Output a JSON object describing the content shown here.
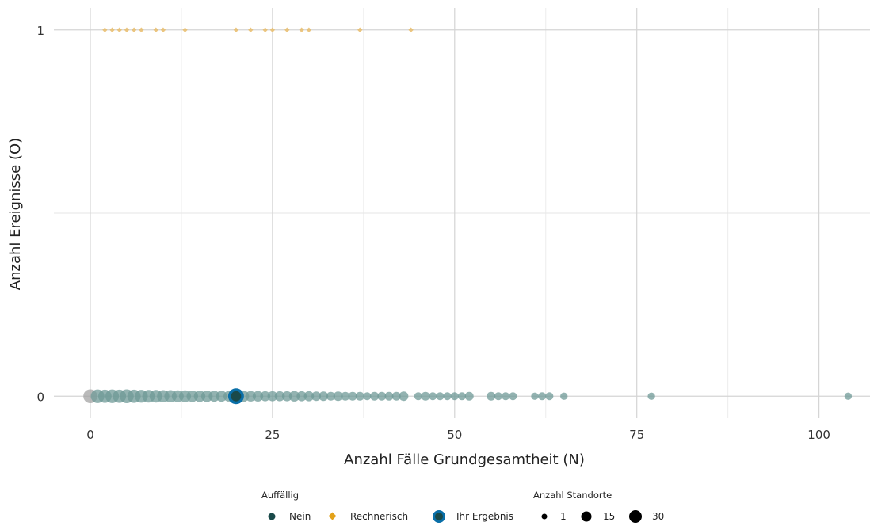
{
  "chart_data": {
    "type": "scatter",
    "xlabel": "Anzahl Fälle Grundgesamtheit (N)",
    "ylabel": "Anzahl Ereignisse (O)",
    "xlim": [
      -5,
      107
    ],
    "ylim": [
      -0.06,
      1.06
    ],
    "x_ticks": [
      0,
      25,
      50,
      75,
      100
    ],
    "x_tick_labels": [
      "0",
      "25",
      "50",
      "75",
      "100"
    ],
    "y_ticks": [
      0,
      1
    ],
    "y_tick_labels": [
      "0",
      "1"
    ],
    "grid": true,
    "legend_placement": "bottom",
    "legend": {
      "auffaellig_title": "Auffällig",
      "auffaellig_items": [
        {
          "label": "Nein",
          "shape": "circle",
          "color": "#1a4a4a"
        },
        {
          "label": "Rechnerisch",
          "shape": "diamond",
          "color": "#e3a21a"
        },
        {
          "label": "Ihr Ergebnis",
          "shape": "circle-ring",
          "color": "#0a6fa8"
        }
      ],
      "size_title": "Anzahl Standorte",
      "size_items": [
        {
          "label": "1",
          "value": 1
        },
        {
          "label": "15",
          "value": 15
        },
        {
          "label": "30",
          "value": 30
        }
      ]
    },
    "colors": {
      "nein": "#6f9a97",
      "rechnerisch": "#e9bd6c",
      "ihr_ergebnis_fill": "#1a4a4a",
      "ihr_ergebnis_ring": "#0a6fa8",
      "zero_point": "#a3a3a3"
    },
    "series": [
      {
        "name": "Nein",
        "y": 0,
        "points": [
          {
            "x": 0,
            "n": 30
          },
          {
            "x": 1,
            "n": 28
          },
          {
            "x": 2,
            "n": 26
          },
          {
            "x": 3,
            "n": 28
          },
          {
            "x": 4,
            "n": 26
          },
          {
            "x": 5,
            "n": 30
          },
          {
            "x": 6,
            "n": 26
          },
          {
            "x": 7,
            "n": 24
          },
          {
            "x": 8,
            "n": 22
          },
          {
            "x": 9,
            "n": 22
          },
          {
            "x": 10,
            "n": 20
          },
          {
            "x": 11,
            "n": 20
          },
          {
            "x": 12,
            "n": 18
          },
          {
            "x": 13,
            "n": 18
          },
          {
            "x": 14,
            "n": 16
          },
          {
            "x": 15,
            "n": 16
          },
          {
            "x": 16,
            "n": 16
          },
          {
            "x": 17,
            "n": 14
          },
          {
            "x": 18,
            "n": 14
          },
          {
            "x": 19,
            "n": 12
          },
          {
            "x": 21,
            "n": 16
          },
          {
            "x": 22,
            "n": 12
          },
          {
            "x": 23,
            "n": 12
          },
          {
            "x": 24,
            "n": 10
          },
          {
            "x": 25,
            "n": 10
          },
          {
            "x": 26,
            "n": 10
          },
          {
            "x": 27,
            "n": 10
          },
          {
            "x": 28,
            "n": 12
          },
          {
            "x": 29,
            "n": 10
          },
          {
            "x": 30,
            "n": 10
          },
          {
            "x": 31,
            "n": 8
          },
          {
            "x": 32,
            "n": 8
          },
          {
            "x": 33,
            "n": 6
          },
          {
            "x": 34,
            "n": 8
          },
          {
            "x": 35,
            "n": 6
          },
          {
            "x": 36,
            "n": 6
          },
          {
            "x": 37,
            "n": 6
          },
          {
            "x": 38,
            "n": 4
          },
          {
            "x": 39,
            "n": 6
          },
          {
            "x": 40,
            "n": 6
          },
          {
            "x": 41,
            "n": 6
          },
          {
            "x": 42,
            "n": 6
          },
          {
            "x": 43,
            "n": 8
          },
          {
            "x": 45,
            "n": 4
          },
          {
            "x": 46,
            "n": 6
          },
          {
            "x": 47,
            "n": 4
          },
          {
            "x": 48,
            "n": 4
          },
          {
            "x": 49,
            "n": 4
          },
          {
            "x": 50,
            "n": 4
          },
          {
            "x": 51,
            "n": 4
          },
          {
            "x": 52,
            "n": 6
          },
          {
            "x": 55,
            "n": 6
          },
          {
            "x": 56,
            "n": 4
          },
          {
            "x": 57,
            "n": 4
          },
          {
            "x": 58,
            "n": 4
          },
          {
            "x": 61,
            "n": 3
          },
          {
            "x": 62,
            "n": 4
          },
          {
            "x": 63,
            "n": 4
          },
          {
            "x": 65,
            "n": 3
          },
          {
            "x": 77,
            "n": 3
          },
          {
            "x": 104,
            "n": 3
          }
        ]
      },
      {
        "name": "Rechnerisch",
        "y": 1,
        "points": [
          {
            "x": 2,
            "n": 1
          },
          {
            "x": 3,
            "n": 1
          },
          {
            "x": 4,
            "n": 1
          },
          {
            "x": 5,
            "n": 1
          },
          {
            "x": 6,
            "n": 1
          },
          {
            "x": 7,
            "n": 1
          },
          {
            "x": 9,
            "n": 1
          },
          {
            "x": 10,
            "n": 1
          },
          {
            "x": 13,
            "n": 1
          },
          {
            "x": 20,
            "n": 1
          },
          {
            "x": 22,
            "n": 1
          },
          {
            "x": 24,
            "n": 1
          },
          {
            "x": 25,
            "n": 1
          },
          {
            "x": 27,
            "n": 1
          },
          {
            "x": 29,
            "n": 1
          },
          {
            "x": 30,
            "n": 1
          },
          {
            "x": 37,
            "n": 1
          },
          {
            "x": 44,
            "n": 1
          }
        ]
      },
      {
        "name": "Ihr Ergebnis",
        "y": 0,
        "points": [
          {
            "x": 20,
            "n": 30
          }
        ]
      }
    ]
  }
}
